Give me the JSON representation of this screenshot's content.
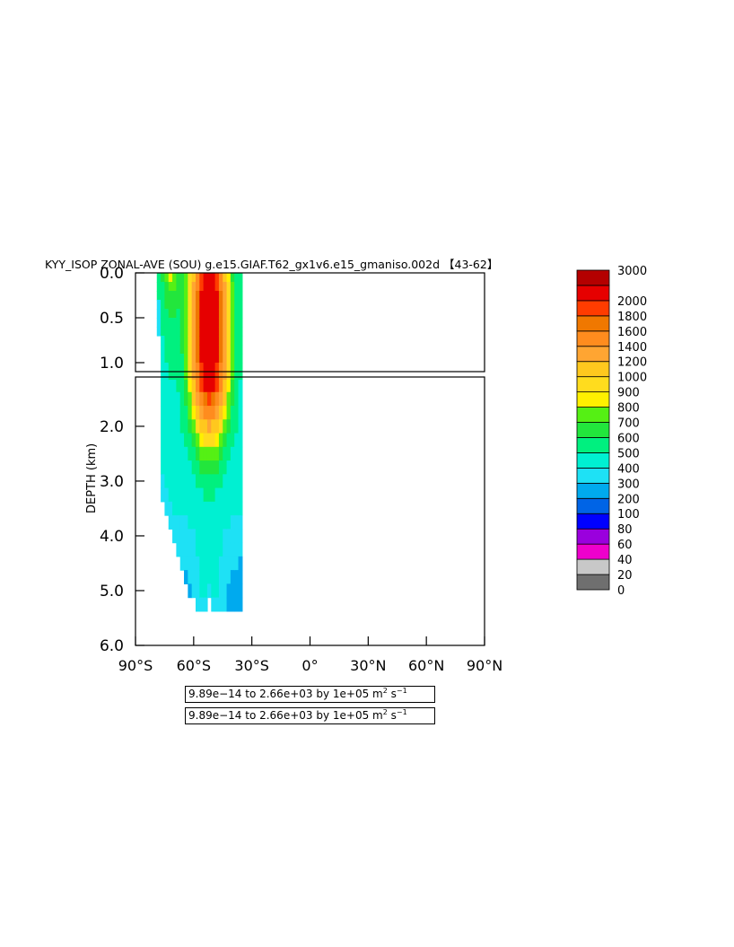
{
  "chart_data": {
    "type": "heatmap",
    "title": "KYY_ISOP ZONAL-AVE (SOU) g.e15.GIAF.T62_gx1v6.e15_gmaniso.002d 【43-62】",
    "xlabel": "",
    "ylabel": "DEPTH (km)",
    "xlim": [
      -90,
      90
    ],
    "ylim": [
      0,
      6
    ],
    "y_split": 1.1,
    "x_ticks": [
      {
        "value": -90,
        "label": "90°S"
      },
      {
        "value": -60,
        "label": "60°S"
      },
      {
        "value": -30,
        "label": "30°S"
      },
      {
        "value": 0,
        "label": "0°"
      },
      {
        "value": 30,
        "label": "30°N"
      },
      {
        "value": 60,
        "label": "60°N"
      },
      {
        "value": 90,
        "label": "90°N"
      }
    ],
    "y_ticks_upper": [
      {
        "value": 0.0,
        "label": "0.0"
      },
      {
        "value": 0.5,
        "label": "0.5"
      },
      {
        "value": 1.0,
        "label": "1.0"
      }
    ],
    "y_ticks_lower": [
      {
        "value": 2.0,
        "label": "2.0"
      },
      {
        "value": 3.0,
        "label": "3.0"
      },
      {
        "value": 4.0,
        "label": "4.0"
      },
      {
        "value": 5.0,
        "label": "5.0"
      },
      {
        "value": 6.0,
        "label": "6.0"
      }
    ],
    "colorbar": {
      "levels": [
        "0",
        "20",
        "40",
        "60",
        "80",
        "100",
        "200",
        "300",
        "400",
        "500",
        "600",
        "700",
        "800",
        "900",
        "1000",
        "1200",
        "1400",
        "1600",
        "1800",
        "2000",
        "3000"
      ],
      "colors": [
        "#6f6f6f",
        "#c8c8c8",
        "#ee00cc",
        "#9a00dd",
        "#0000ff",
        "#0064e6",
        "#00aaee",
        "#1ee1f5",
        "#00f0d2",
        "#00f07f",
        "#22e63c",
        "#55f014",
        "#fff000",
        "#ffdc1e",
        "#ffc81e",
        "#ffa532",
        "#ff8c1e",
        "#f07800",
        "#ff3c00",
        "#e60000",
        "#b40000"
      ]
    },
    "data": {
      "lon": [
        -78,
        -76,
        -74,
        -72,
        -70,
        -68,
        -66,
        -64,
        -62,
        -60,
        -58,
        -56,
        -54,
        -52,
        -50,
        -48,
        -46,
        -44,
        -42,
        -40,
        -38,
        -36
      ],
      "depth": [
        0.05,
        0.15,
        0.25,
        0.35,
        0.45,
        0.55,
        0.65,
        0.75,
        0.85,
        0.95,
        1.05,
        1.25,
        1.5,
        1.75,
        2.0,
        2.25,
        2.5,
        2.75,
        3.0,
        3.25,
        3.5,
        3.75,
        4.0,
        4.25,
        4.5,
        4.75,
        5.0,
        5.25
      ],
      "bottom_depth": [
        0.65,
        3.3,
        3.6,
        3.9,
        4.1,
        4.4,
        4.6,
        4.8,
        5.0,
        5.2,
        5.4,
        5.4,
        5.4,
        5.2,
        5.4,
        5.4,
        5.4,
        5.4,
        5.4,
        5.4,
        5.4,
        5.4
      ],
      "peak_lon": -52,
      "peak_sigma_lon": 6,
      "peak_value": 2100,
      "peak_core_depth": 0.6,
      "background_value": 450
    },
    "range_labels": [
      "9.89e−14 to 2.66e+03 by 1e+05 m² s⁻¹",
      "9.89e−14 to 2.66e+03 by 1e+05 m² s⁻¹"
    ]
  }
}
